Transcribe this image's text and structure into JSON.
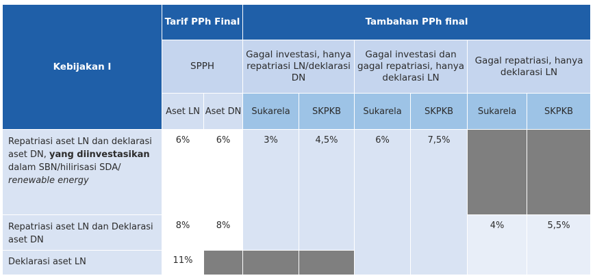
{
  "header": {
    "kebijakan": "Kebijakan I",
    "tarif": "Tarif PPh Final",
    "tambahan": "Tambahan PPh final",
    "spph": "SPPH",
    "gagal1": "Gagal investasi, hanya repatriasi LN/deklarasi DN",
    "gagal2": "Gagal investasi dan gagal repatriasi, hanya deklarasi LN",
    "gagal3": "Gagal repatriasi, hanya deklarasi LN",
    "aset_ln": "Aset LN",
    "aset_dn": "Aset DN",
    "sukarela": "Sukarela",
    "skpkb": "SKPKB"
  },
  "rows": {
    "r1": {
      "label_pre": "Repatriasi aset LN dan deklarasi aset DN, ",
      "label_bold": "yang diinvestasikan",
      "label_mid": " dalam SBN/hilirisasi SDA/ ",
      "label_italic": "renewable energy",
      "aset_ln": "6%",
      "aset_dn": "6%",
      "g1_sukarela": "3%",
      "g1_skpkb": "4,5%",
      "g2_sukarela": "6%",
      "g2_skpkb": "7,5%"
    },
    "r2": {
      "label": "Repatriasi aset LN dan Deklarasi aset DN",
      "aset_ln": "8%",
      "aset_dn": "8%",
      "g3_sukarela": "4%",
      "g3_skpkb": "5,5%"
    },
    "r3": {
      "label": "Deklarasi aset LN",
      "aset_ln": "11%"
    }
  },
  "colors": {
    "header_dark": "#1f5fa8",
    "header_light": "#c5d5ee",
    "subheader": "#9dc3e6",
    "row_light": "#d9e3f3",
    "gray_block": "#7f7f7f"
  }
}
